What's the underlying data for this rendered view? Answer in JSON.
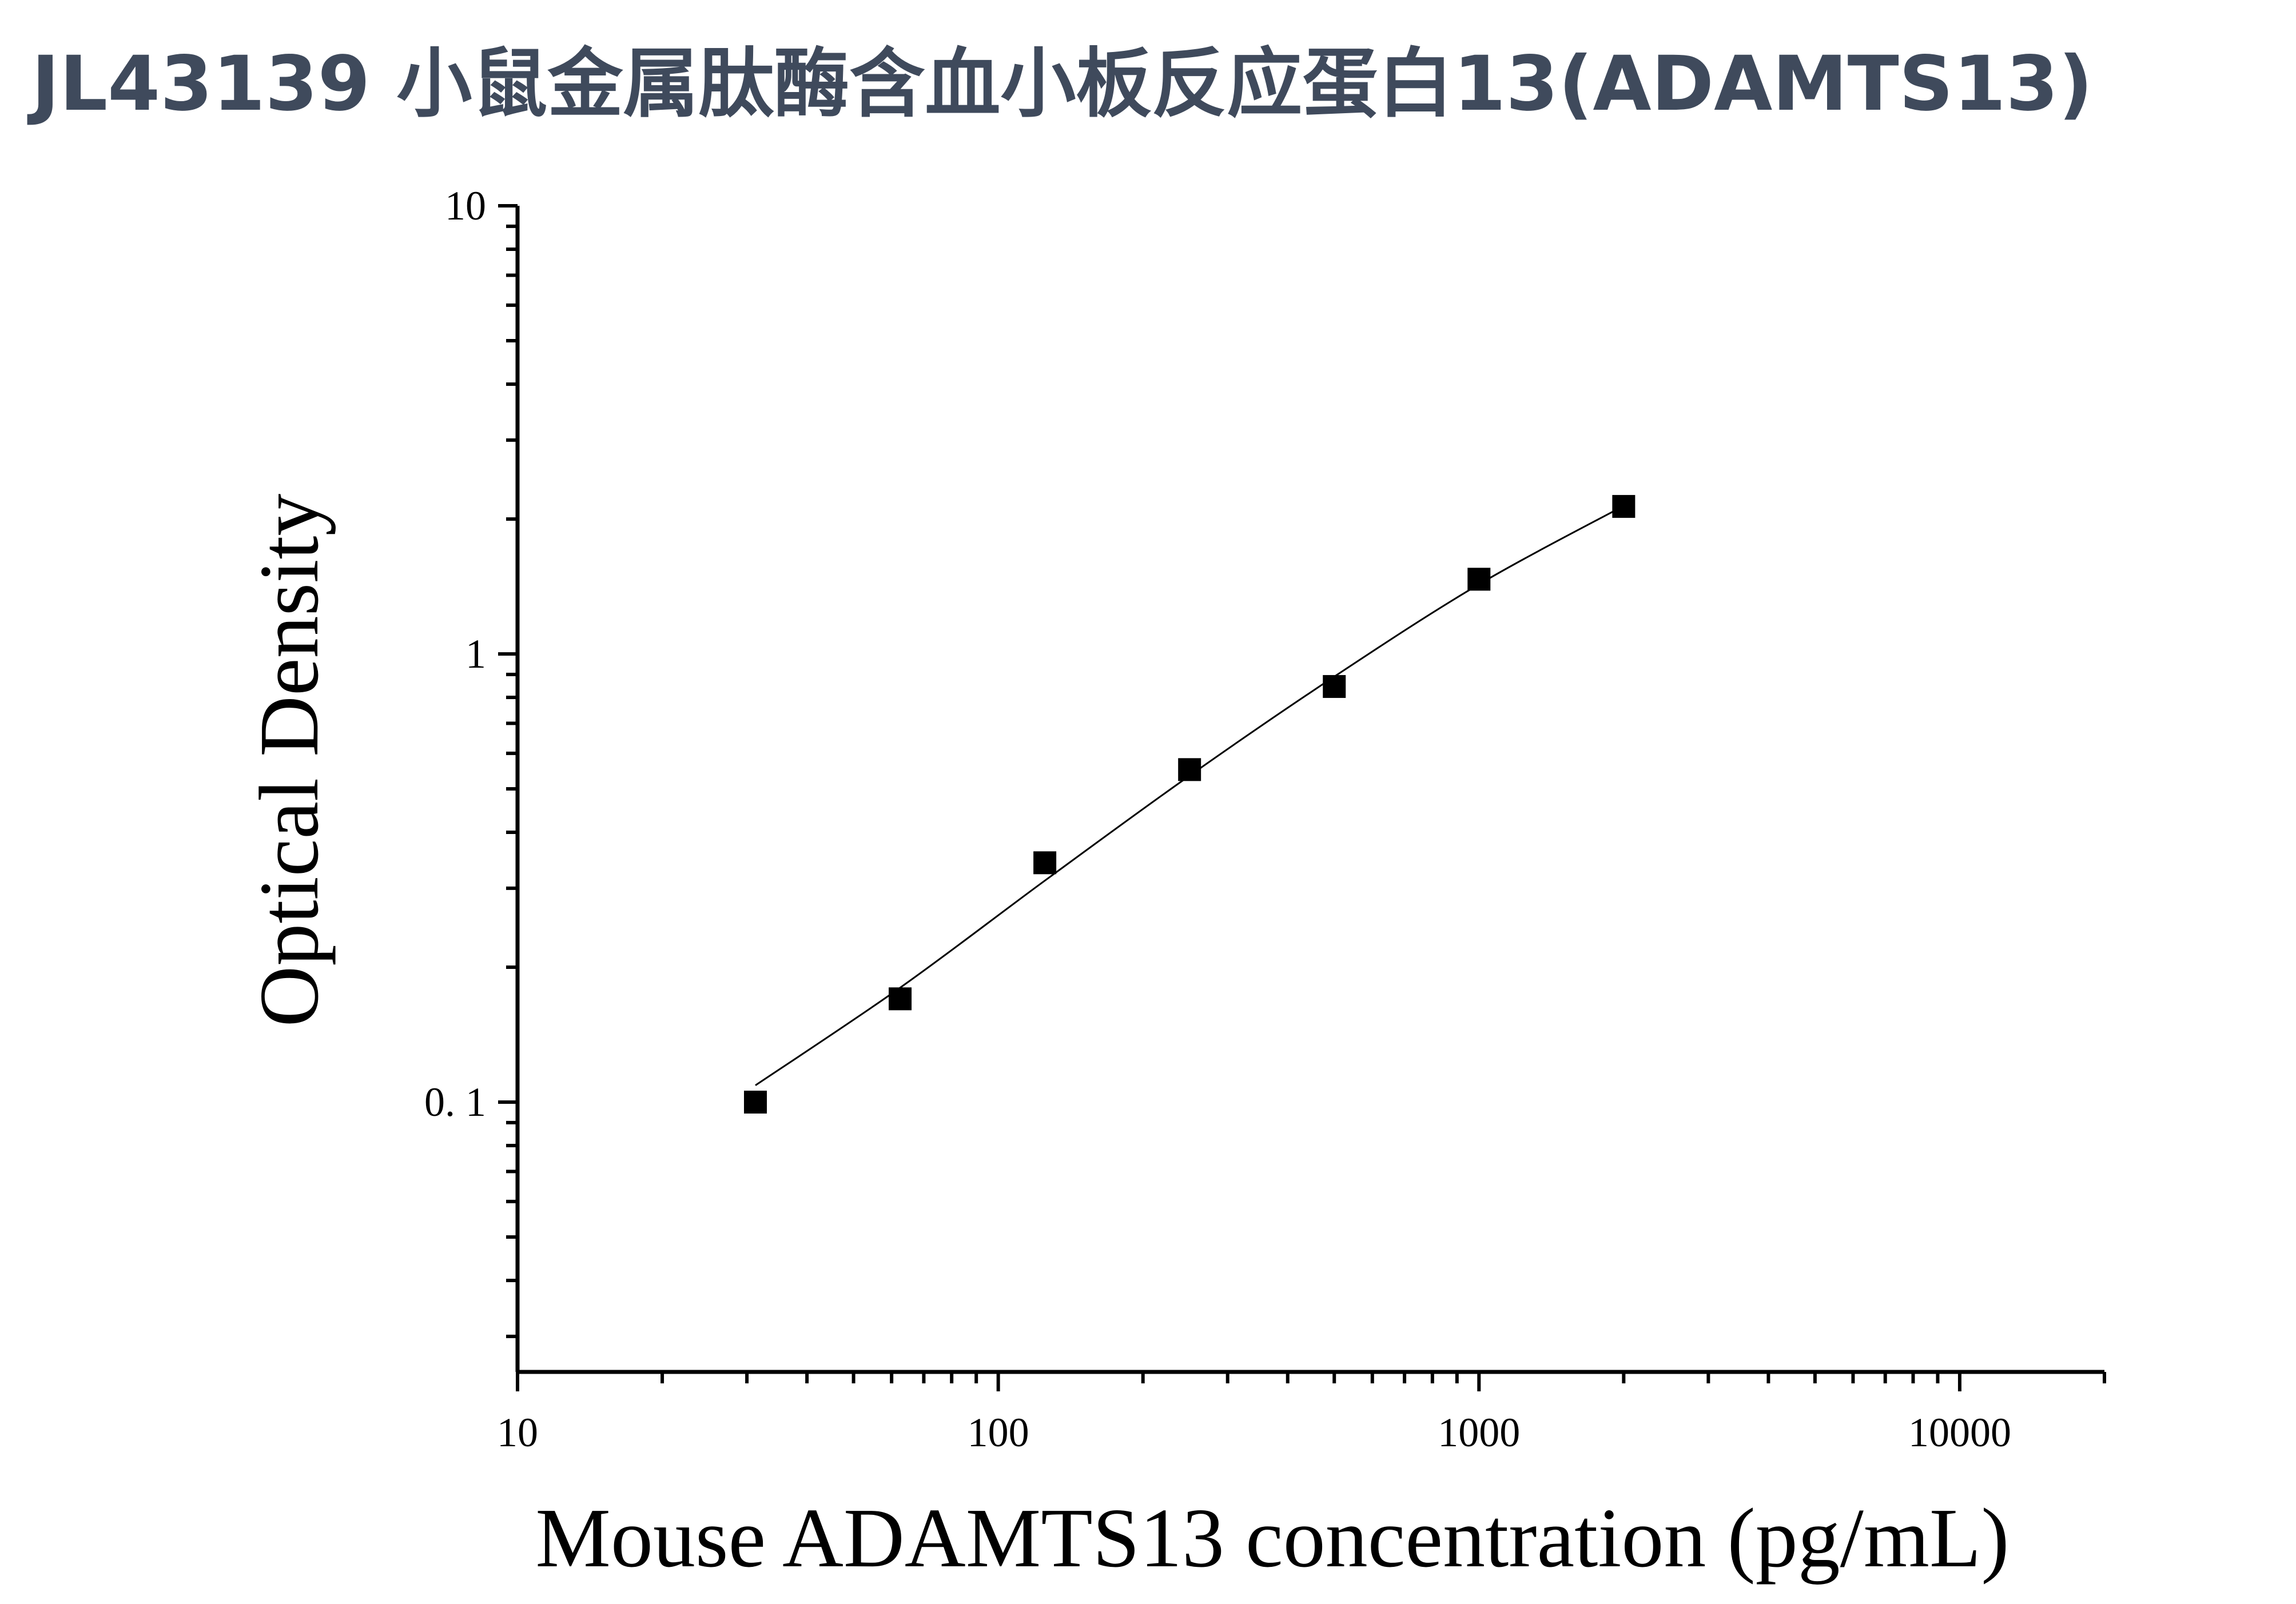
{
  "header": {
    "title": "JL43139 小鼠金属肽酶含血小板反应蛋白13(ADAMTS13)"
  },
  "chart_data": {
    "type": "scatter",
    "title": "",
    "xlabel": "Mouse ADAMTS13 concentration (pg/mL)",
    "ylabel": "Optical Density",
    "xscale": "log",
    "yscale": "log",
    "xlim": [
      10,
      20000
    ],
    "ylim": [
      0.025,
      10
    ],
    "x_tick_labels": [
      "10",
      "100",
      "1000",
      "10000"
    ],
    "y_tick_labels": [
      "0. 1",
      "1",
      "10"
    ],
    "grid": false,
    "series": [
      {
        "marker": "square",
        "color": "#000000",
        "x": [
          31.25,
          62.5,
          125,
          250,
          500,
          1000,
          2000
        ],
        "y": [
          0.1,
          0.17,
          0.342,
          0.552,
          0.846,
          1.468,
          2.134
        ]
      }
    ],
    "fit_curve": {
      "type": "line",
      "color": "#000000",
      "x": [
        31.25,
        62.5,
        125,
        250,
        500,
        1000,
        2000
      ],
      "y": [
        0.109,
        0.18,
        0.312,
        0.535,
        0.89,
        1.43,
        2.14
      ]
    }
  }
}
